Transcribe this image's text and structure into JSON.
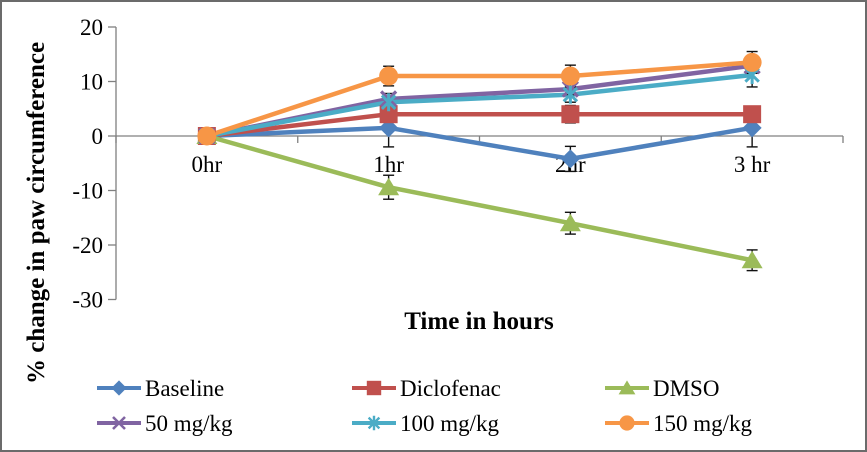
{
  "chart_data": {
    "type": "line",
    "title": "",
    "xlabel": "Time in hours",
    "ylabel": "% change in paw circumference",
    "categories": [
      "0hr",
      "1hr",
      "2hr",
      "3 hr"
    ],
    "yticks": [
      20,
      10,
      0,
      -10,
      -20,
      -30
    ],
    "ylim": [
      -30,
      20
    ],
    "grid": false,
    "legend_position": "bottom",
    "axis_color": "#808080",
    "error_bar_color": "#111111",
    "series": [
      {
        "name": "Baseline",
        "color": "#4F81BD",
        "marker": "diamond",
        "values": [
          0,
          1.5,
          -4.2,
          1.5
        ],
        "errors": [
          0,
          3.5,
          2.3,
          3.5
        ]
      },
      {
        "name": "Diclofenac",
        "color": "#C0504D",
        "marker": "square",
        "values": [
          0,
          4,
          4,
          4
        ],
        "errors": [
          0,
          1.0,
          1.6,
          1.0
        ]
      },
      {
        "name": "DMSO",
        "color": "#9BBB59",
        "marker": "triangle",
        "values": [
          0,
          -9.4,
          -16,
          -22.8
        ],
        "errors": [
          0,
          2.2,
          2.0,
          1.9
        ]
      },
      {
        "name": "50 mg/kg",
        "color": "#8064A2",
        "marker": "x",
        "values": [
          0,
          6.8,
          8.6,
          12.9
        ],
        "errors": [
          0,
          1.0,
          1.0,
          1.0
        ]
      },
      {
        "name": "100 mg/kg",
        "color": "#4BACC6",
        "marker": "asterisk",
        "values": [
          0,
          6.2,
          7.6,
          11.2
        ],
        "errors": [
          0,
          1.0,
          1.4,
          2.2
        ]
      },
      {
        "name": "150 mg/kg",
        "color": "#F79646",
        "marker": "circle",
        "values": [
          0,
          11,
          11,
          13.5
        ],
        "errors": [
          0,
          1.8,
          2.0,
          2.0
        ]
      }
    ]
  }
}
